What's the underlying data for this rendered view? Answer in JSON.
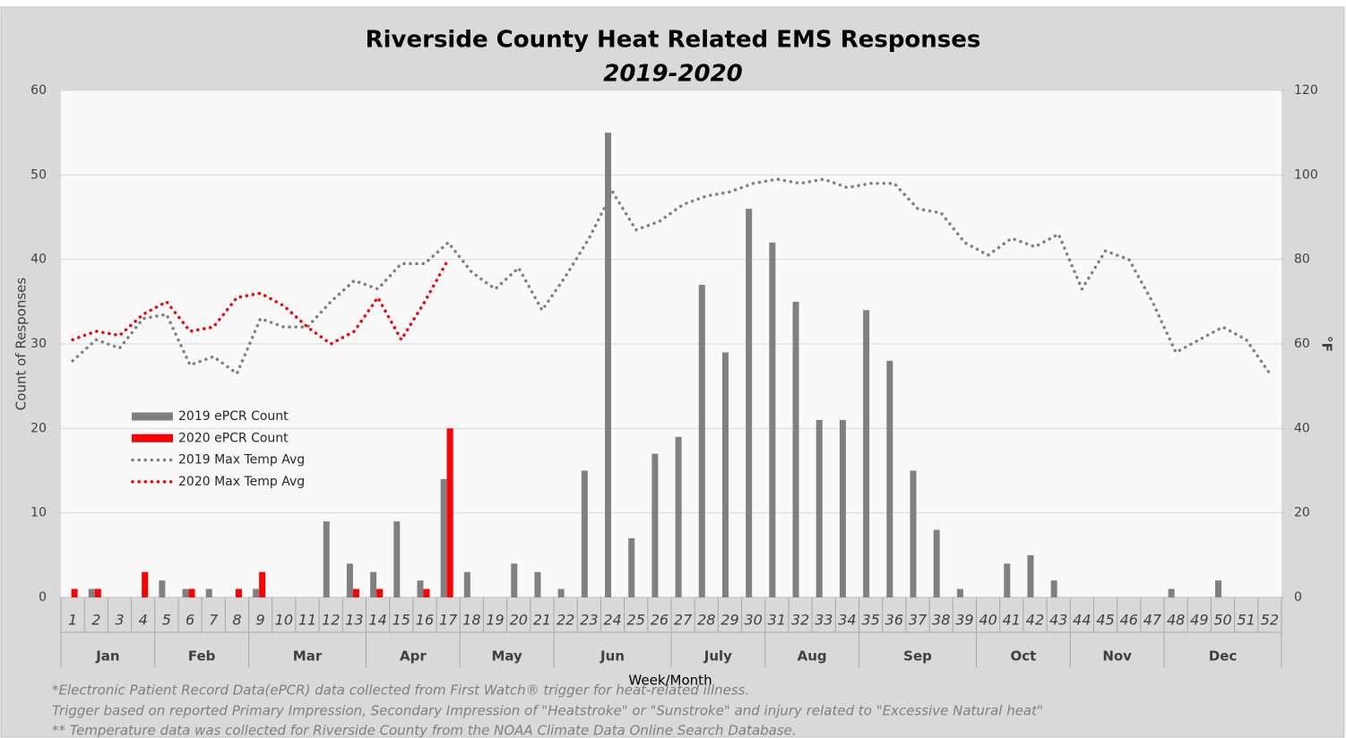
{
  "chart_data": {
    "type": "bar",
    "title": "Riverside County Heat Related EMS Responses",
    "subtitle": "2019-2020",
    "y_label": "Count of Responses",
    "y2_label": "°F",
    "x_label": "Week/Month",
    "footnotes": [
      "*Electronic Patient Record Data(ePCR) data collected from First Watch® trigger  for heat-related illness.",
      "Trigger based on reported Primary Impression, Secondary Impression  of \"Heatstroke\" or \"Sunstroke\"  and  injury related to  \"Excessive Natural heat\"",
      "** Temperature data was collected for Riverside County from the NOAA Climate Data Online Search Database."
    ],
    "categories": [
      "1",
      "2",
      "3",
      "4",
      "5",
      "6",
      "7",
      "8",
      "9",
      "10",
      "11",
      "12",
      "13",
      "14",
      "15",
      "16",
      "17",
      "18",
      "19",
      "20",
      "21",
      "22",
      "23",
      "24",
      "25",
      "26",
      "27",
      "28",
      "29",
      "30",
      "31",
      "32",
      "33",
      "34",
      "35",
      "36",
      "37",
      "38",
      "39",
      "40",
      "41",
      "42",
      "43",
      "44",
      "45",
      "46",
      "47",
      "48",
      "49",
      "50",
      "51",
      "52"
    ],
    "x_groups": [
      {
        "label": "Jan",
        "weeks": 4
      },
      {
        "label": "Feb",
        "weeks": 4
      },
      {
        "label": "Mar",
        "weeks": 5
      },
      {
        "label": "Apr",
        "weeks": 4
      },
      {
        "label": "May",
        "weeks": 4
      },
      {
        "label": "Jun",
        "weeks": 5
      },
      {
        "label": "July",
        "weeks": 4
      },
      {
        "label": "Aug",
        "weeks": 4
      },
      {
        "label": "Sep",
        "weeks": 5
      },
      {
        "label": "Oct",
        "weeks": 4
      },
      {
        "label": "Nov",
        "weeks": 4
      },
      {
        "label": "Dec",
        "weeks": 5
      }
    ],
    "series": [
      {
        "name": "2019 ePCR Count",
        "type": "bar",
        "color": "#808080",
        "values": [
          0,
          1,
          0,
          0,
          2,
          1,
          1,
          0,
          1,
          0,
          0,
          9,
          4,
          3,
          9,
          2,
          14,
          3,
          0,
          4,
          3,
          1,
          15,
          55,
          7,
          17,
          19,
          37,
          29,
          46,
          42,
          35,
          21,
          21,
          34,
          28,
          15,
          8,
          1,
          0,
          4,
          5,
          2,
          0,
          0,
          0,
          0,
          1,
          0,
          2,
          0,
          0
        ]
      },
      {
        "name": "2020 ePCR Count",
        "type": "bar",
        "color": "#ff0000",
        "values": [
          1,
          1,
          0,
          3,
          0,
          1,
          0,
          1,
          3,
          0,
          0,
          0,
          1,
          1,
          0,
          1,
          20,
          null,
          null,
          null,
          null,
          null,
          null,
          null,
          null,
          null,
          null,
          null,
          null,
          null,
          null,
          null,
          null,
          null,
          null,
          null,
          null,
          null,
          null,
          null,
          null,
          null,
          null,
          null,
          null,
          null,
          null,
          null,
          null,
          null,
          null,
          null
        ]
      },
      {
        "name": "2019 Max Temp Avg",
        "type": "line",
        "line_style": "dotted",
        "axis": "y2",
        "color": "#808080",
        "values": [
          56,
          61,
          59,
          66,
          67,
          55,
          57,
          53,
          66,
          64,
          64,
          70,
          75,
          73,
          79,
          79,
          84,
          77,
          73,
          78,
          68,
          76,
          85,
          96,
          87,
          89,
          93,
          95,
          96,
          98,
          99,
          98,
          99,
          97,
          98,
          98,
          92,
          91,
          84,
          81,
          85,
          83,
          86,
          73,
          82,
          80,
          70,
          58,
          61,
          64,
          61,
          53
        ]
      },
      {
        "name": "2020 Max Temp Avg",
        "type": "line",
        "line_style": "dotted",
        "axis": "y2",
        "color": "#ff0000",
        "values": [
          61,
          63,
          62,
          67,
          70,
          63,
          64,
          71,
          72,
          69,
          64,
          60,
          63,
          71,
          61,
          70,
          80,
          null,
          null,
          null,
          null,
          null,
          null,
          null,
          null,
          null,
          null,
          null,
          null,
          null,
          null,
          null,
          null,
          null,
          null,
          null,
          null,
          null,
          null,
          null,
          null,
          null,
          null,
          null,
          null,
          null,
          null,
          null,
          null,
          null,
          null,
          null
        ]
      }
    ],
    "ylim": [
      0,
      60
    ],
    "yticks": [
      0,
      10,
      20,
      30,
      40,
      50,
      60
    ],
    "y2lim": [
      0,
      120
    ],
    "y2ticks": [
      0,
      20,
      40,
      60,
      80,
      100,
      120
    ],
    "grid": true
  }
}
